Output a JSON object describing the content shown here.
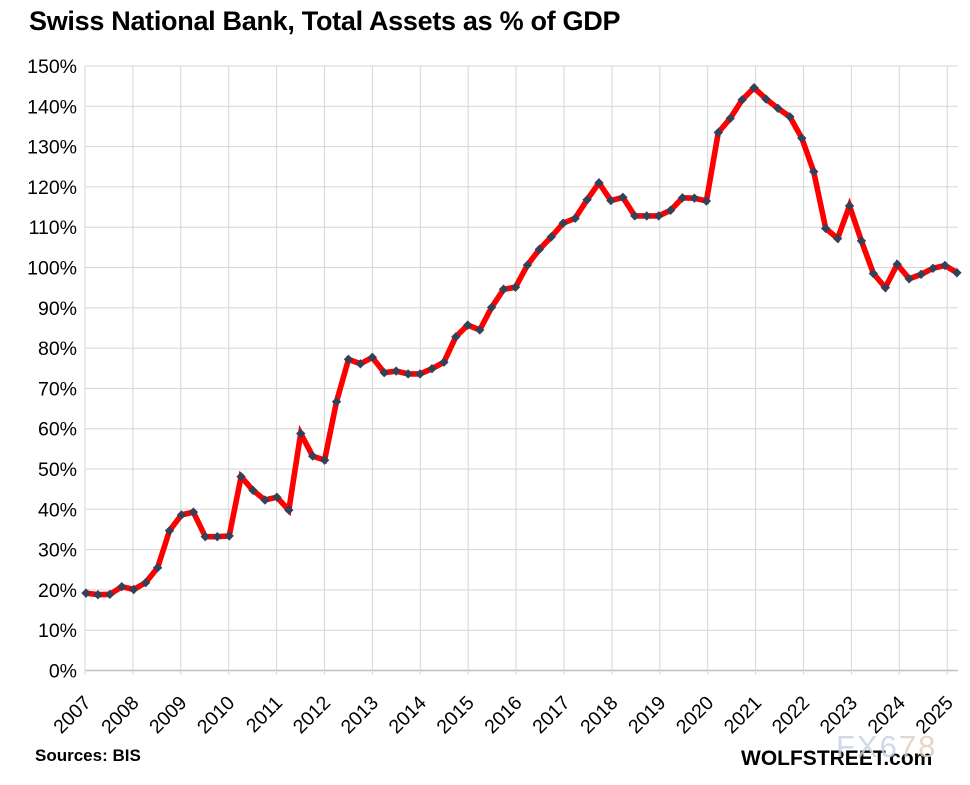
{
  "footer": {
    "sources": "Sources: BIS",
    "brand": "WOLFSTREET.com"
  },
  "watermark": {
    "part1": "FX6",
    "part2": "78"
  },
  "chart_data": {
    "type": "line",
    "title": "Swiss National Bank, Total Assets as % of GDP",
    "unit": "%",
    "series_name": "SNB total assets as % of GDP",
    "frequency": "quarterly",
    "start_period": "2007-Q1",
    "end_period": "2025-Q2",
    "x_tick_labels": [
      "2007",
      "2008",
      "2009",
      "2010",
      "2011",
      "2012",
      "2013",
      "2014",
      "2015",
      "2016",
      "2017",
      "2018",
      "2019",
      "2020",
      "2021",
      "2022",
      "2023",
      "2024",
      "2025"
    ],
    "y_tick_labels": [
      "0%",
      "10%",
      "20%",
      "30%",
      "40%",
      "50%",
      "60%",
      "70%",
      "80%",
      "90%",
      "100%",
      "110%",
      "120%",
      "130%",
      "140%",
      "150%"
    ],
    "ylim": [
      0,
      150
    ],
    "grid": true,
    "legend": "none",
    "values": [
      19.2,
      18.8,
      18.9,
      20.8,
      20.1,
      21.8,
      25.5,
      34.7,
      38.6,
      39.3,
      33.2,
      33.2,
      33.4,
      48.1,
      44.7,
      42.3,
      43.0,
      39.8,
      58.8,
      53.2,
      52.2,
      66.7,
      77.2,
      76.1,
      77.7,
      73.9,
      74.3,
      73.6,
      73.6,
      74.9,
      76.5,
      82.8,
      85.7,
      84.5,
      90.1,
      94.6,
      95.1,
      100.6,
      104.5,
      107.6,
      111.0,
      112.2,
      116.8,
      121.0,
      116.6,
      117.4,
      112.8,
      112.8,
      112.8,
      114.2,
      117.3,
      117.2,
      116.5,
      133.5,
      137.0,
      141.6,
      144.6,
      141.8,
      139.5,
      137.4,
      132.1,
      123.8,
      109.7,
      107.2,
      115.3,
      106.6,
      98.5,
      95.0,
      100.8,
      97.2,
      98.3,
      99.8,
      100.5,
      98.7
    ],
    "colors": {
      "line": "#fe0000",
      "marker": "#344258",
      "gridline": "#d6d6d6",
      "axis_line": "#bfbfbf",
      "text": "#000000"
    }
  }
}
